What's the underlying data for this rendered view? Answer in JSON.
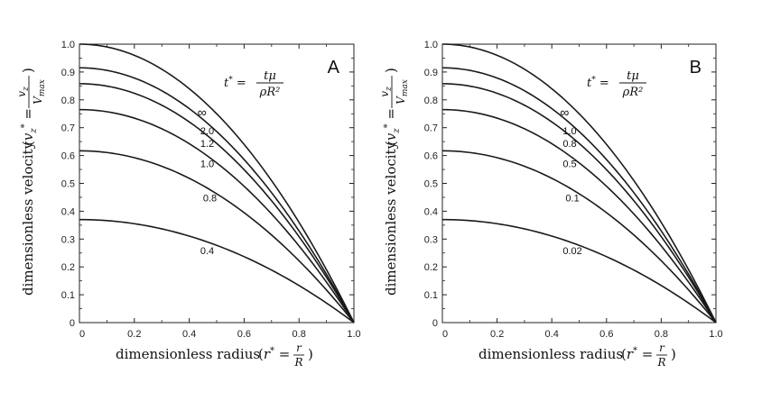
{
  "chart_data": [
    {
      "type": "line",
      "panel_label": "A",
      "formula": {
        "lhs": "t*",
        "numerator": "tμ",
        "denominator": "ρR²"
      },
      "xlabel": {
        "text": "dimensionless radius",
        "paren_lhs": "r*",
        "numerator": "r",
        "denominator": "R"
      },
      "ylabel": {
        "text": "dimensionless velocity",
        "paren_lhs": "vz*",
        "numerator": "vz",
        "denominator": "Vmax"
      },
      "xlim": [
        0,
        1.0
      ],
      "ylim": [
        0,
        1.0
      ],
      "xticks": [
        "0",
        "0.2",
        "0.4",
        "0.6",
        "0.8",
        "1.0"
      ],
      "yticks": [
        "0",
        "0.1",
        "0.2",
        "0.3",
        "0.4",
        "0.5",
        "0.6",
        "0.7",
        "0.8",
        "0.9",
        "1.0"
      ],
      "grid": false,
      "series": [
        {
          "name": "∞",
          "y0": 1.0
        },
        {
          "name": "2.0",
          "y0": 0.915
        },
        {
          "name": "1.2",
          "y0": 0.858
        },
        {
          "name": "1.0",
          "y0": 0.765
        },
        {
          "name": "0.8",
          "y0": 0.617
        },
        {
          "name": "0.4",
          "y0": 0.37
        }
      ]
    },
    {
      "type": "line",
      "panel_label": "B",
      "formula": {
        "lhs": "t*",
        "numerator": "tμ",
        "denominator": "ρR²"
      },
      "xlabel": {
        "text": "dimensionless radius",
        "paren_lhs": "r*",
        "numerator": "r",
        "denominator": "R"
      },
      "ylabel": {
        "text": "dimensionless velocity",
        "paren_lhs": "vz*",
        "numerator": "vz",
        "denominator": "Vmax"
      },
      "xlim": [
        0,
        1.0
      ],
      "ylim": [
        0,
        1.0
      ],
      "xticks": [
        "0",
        "0.2",
        "0.4",
        "0.6",
        "0.8",
        "1.0"
      ],
      "yticks": [
        "0",
        "0.1",
        "0.2",
        "0.3",
        "0.4",
        "0.5",
        "0.6",
        "0.7",
        "0.8",
        "0.9",
        "1.0"
      ],
      "grid": false,
      "series": [
        {
          "name": "∞",
          "y0": 1.0
        },
        {
          "name": "1.0",
          "y0": 0.915
        },
        {
          "name": "0.8",
          "y0": 0.858
        },
        {
          "name": "0.5",
          "y0": 0.765
        },
        {
          "name": "0.1",
          "y0": 0.617
        },
        {
          "name": "0.02",
          "y0": 0.37
        }
      ]
    }
  ]
}
